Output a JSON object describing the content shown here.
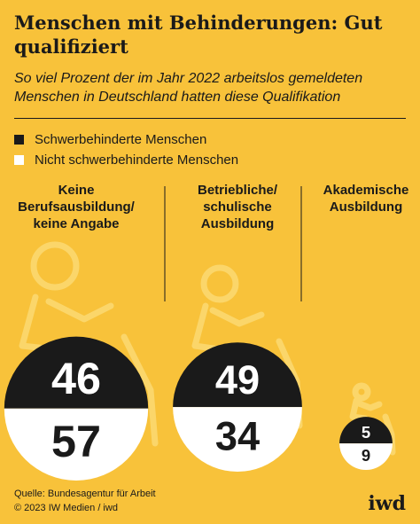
{
  "chart_data": {
    "type": "bubble",
    "title": "Menschen mit Behinderungen: Gut qualifiziert",
    "subtitle": "So viel Prozent der im Jahr 2022 arbeitslos gemeldeten Menschen in Deutschland hatten diese Qualifikation",
    "categories": [
      "Keine Berufsausbildung/ keine Angabe",
      "Betriebliche/ schulische Ausbildung",
      "Akademische Ausbildung"
    ],
    "series": [
      {
        "name": "Schwerbehinderte Menschen",
        "color": "#1a1a1a",
        "values": [
          46,
          49,
          5
        ]
      },
      {
        "name": "Nicht schwerbehinderte Menschen",
        "color": "#ffffff",
        "values": [
          57,
          34,
          9
        ]
      }
    ]
  },
  "footer": {
    "source": "Quelle: Bundesagentur für Arbeit",
    "copyright": "© 2023 IW Medien / iwd",
    "logo": "iwd"
  }
}
